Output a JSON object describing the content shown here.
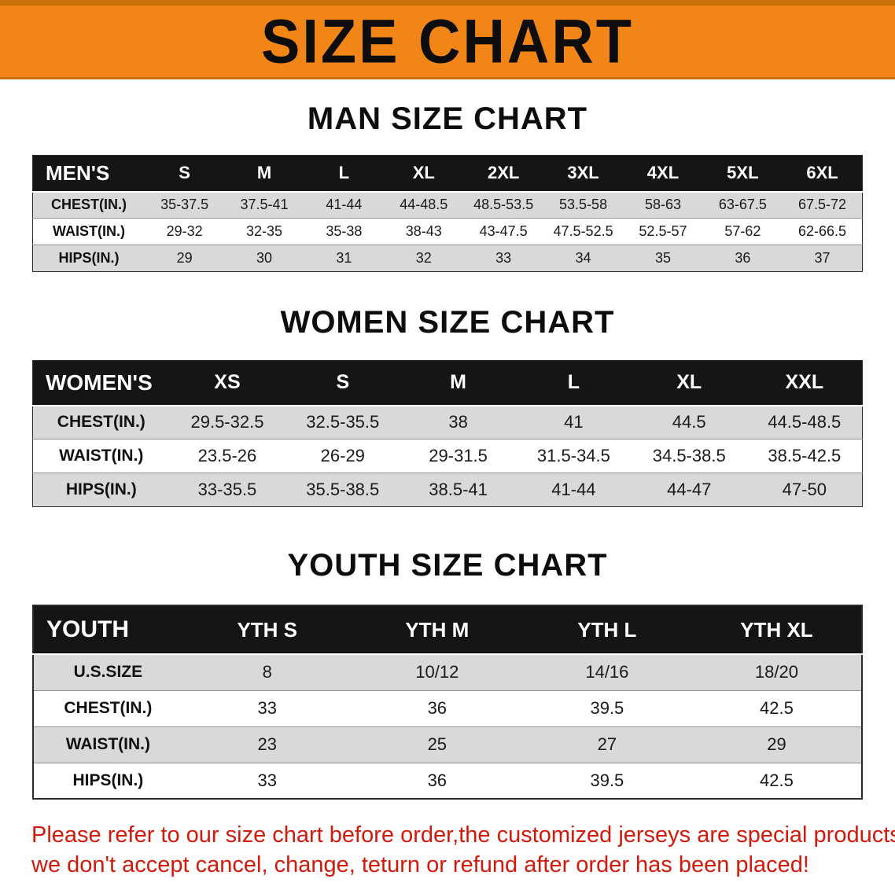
{
  "banner": {
    "title": "SIZE CHART"
  },
  "sections": [
    {
      "id": "men",
      "heading": "MAN SIZE CHART",
      "table": {
        "header": [
          "MEN'S",
          "S",
          "M",
          "L",
          "XL",
          "2XL",
          "3XL",
          "4XL",
          "5XL",
          "6XL"
        ],
        "rows": [
          [
            "CHEST(IN.)",
            "35-37.5",
            "37.5-41",
            "41-44",
            "44-48.5",
            "48.5-53.5",
            "53.5-58",
            "58-63",
            "63-67.5",
            "67.5-72"
          ],
          [
            "WAIST(IN.)",
            "29-32",
            "32-35",
            "35-38",
            "38-43",
            "43-47.5",
            "47.5-52.5",
            "52.5-57",
            "57-62",
            "62-66.5"
          ],
          [
            "HIPS(IN.)",
            "29",
            "30",
            "31",
            "32",
            "33",
            "34",
            "35",
            "36",
            "37"
          ]
        ]
      }
    },
    {
      "id": "women",
      "heading": "WOMEN SIZE CHART",
      "table": {
        "header": [
          "WOMEN'S",
          "XS",
          "S",
          "M",
          "L",
          "XL",
          "XXL"
        ],
        "rows": [
          [
            "CHEST(IN.)",
            "29.5-32.5",
            "32.5-35.5",
            "38",
            "41",
            "44.5",
            "44.5-48.5"
          ],
          [
            "WAIST(IN.)",
            "23.5-26",
            "26-29",
            "29-31.5",
            "31.5-34.5",
            "34.5-38.5",
            "38.5-42.5"
          ],
          [
            "HIPS(IN.)",
            "33-35.5",
            "35.5-38.5",
            "38.5-41",
            "41-44",
            "44-47",
            "47-50"
          ]
        ]
      }
    },
    {
      "id": "youth",
      "heading": "YOUTH SIZE CHART",
      "table": {
        "header": [
          "YOUTH",
          "YTH S",
          "YTH M",
          "YTH L",
          "YTH XL"
        ],
        "rows": [
          [
            "U.S.SIZE",
            "8",
            "10/12",
            "14/16",
            "18/20"
          ],
          [
            "CHEST(IN.)",
            "33",
            "36",
            "39.5",
            "42.5"
          ],
          [
            "WAIST(IN.)",
            "23",
            "25",
            "27",
            "29"
          ],
          [
            "HIPS(IN.)",
            "33",
            "36",
            "39.5",
            "42.5"
          ]
        ]
      }
    }
  ],
  "footer": {
    "line1": "Please refer to our size chart before order,the customized jerseys are special products,",
    "line2": "we don't accept cancel, change, teturn or refund after order has been placed!"
  },
  "colors": {
    "banner_bg": "#F18617",
    "table_header_bg": "#151515",
    "row_alt_bg": "#D9D9D9",
    "notice_text": "#D2190B"
  }
}
